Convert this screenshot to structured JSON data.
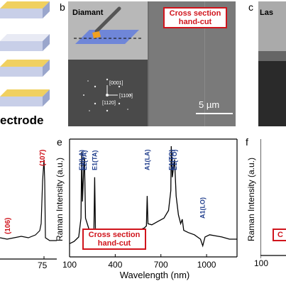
{
  "panel_a": {
    "label": "ectrode"
  },
  "panel_b": {
    "letter": "b",
    "diamant_label": "Diamant",
    "cross_section_line1": "Cross section",
    "cross_section_line2": "hand-cut",
    "scalebar": "5 µm",
    "saed_0001": "[0001]",
    "saed_1100": "[1100]",
    "saed_1120": "[1120]"
  },
  "panel_c": {
    "letter": "c",
    "label": "Las"
  },
  "panel_d": {
    "peak_107": "(107)",
    "peak_106": "(106)",
    "tick_75": "75"
  },
  "panel_e": {
    "letter": "e",
    "ylabel": "Raman Intensity (a.u.)",
    "xlabel": "Wavelength (nm)",
    "box_line1": "Cross section",
    "box_line2": "hand-cut"
  },
  "panel_f": {
    "letter": "f",
    "ylabel": "Raman Intensity (a.u.)",
    "tick_100": "100",
    "box_text": "C"
  },
  "chart_data": {
    "type": "line",
    "xlabel": "Wavelength (nm)",
    "ylabel": "Raman Intensity (a.u.)",
    "xlim": [
      100,
      1200
    ],
    "xticks": [
      "100",
      "400",
      "700",
      "1000"
    ],
    "peaks": [
      {
        "label": "E2(LA)",
        "x": 180
      },
      {
        "label": "E2(TA)",
        "x": 197
      },
      {
        "label": "E1(TA)",
        "x": 265
      },
      {
        "label": "A1(LA)",
        "x": 610
      },
      {
        "label": "E1(TO)",
        "x": 768
      },
      {
        "label": "E1(TO)",
        "x": 790
      },
      {
        "label": "A1(LO)",
        "x": 975
      }
    ],
    "series": [
      {
        "x": [
          100,
          130,
          160,
          175,
          180,
          185,
          195,
          198,
          205,
          230,
          260,
          265,
          270,
          300,
          350,
          400,
          450,
          500,
          550,
          590,
          605,
          610,
          615,
          640,
          680,
          720,
          750,
          765,
          768,
          775,
          790,
          800,
          815,
          830,
          840,
          850,
          880,
          920,
          960,
          975,
          990,
          1020,
          1060,
          1100,
          1150,
          1200
        ],
        "y": [
          0.12,
          0.14,
          0.18,
          0.35,
          0.95,
          0.5,
          0.85,
          0.9,
          0.35,
          0.24,
          0.22,
          0.72,
          0.25,
          0.2,
          0.21,
          0.2,
          0.2,
          0.22,
          0.24,
          0.26,
          0.28,
          0.55,
          0.3,
          0.29,
          0.32,
          0.35,
          0.42,
          0.6,
          1.0,
          0.72,
          0.88,
          0.55,
          0.38,
          0.3,
          0.34,
          0.24,
          0.22,
          0.2,
          0.16,
          0.1,
          0.18,
          0.2,
          0.19,
          0.18,
          0.16,
          0.16
        ]
      }
    ]
  }
}
